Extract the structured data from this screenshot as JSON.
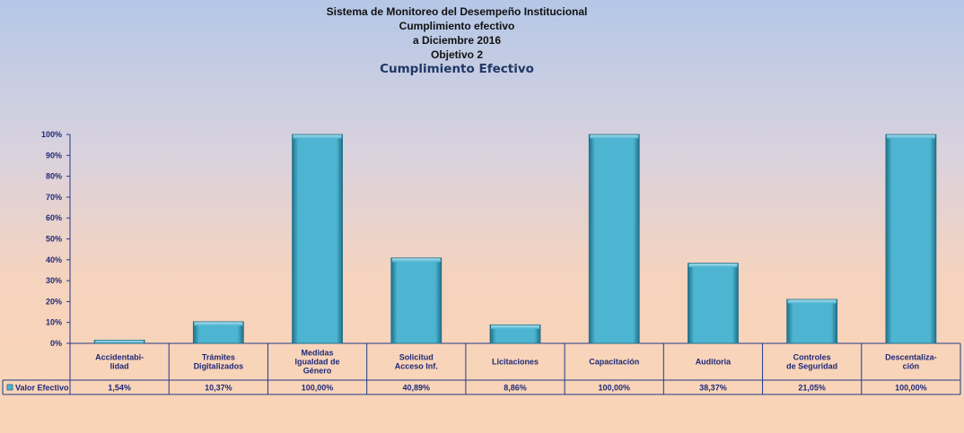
{
  "titles": {
    "line1": "Sistema de Monitoreo del Desempeño Institucional",
    "line2": "Cumplimiento efectivo",
    "line3": "a Diciembre 2016",
    "line4": "Objetivo 2",
    "subtitle": "Cumplimiento Efectivo"
  },
  "chart_data": {
    "type": "bar",
    "categories": [
      [
        "Accidentabi-",
        "lidad"
      ],
      [
        "Trámites",
        "Digitalizados"
      ],
      [
        "Medidas",
        "Igualdad de",
        "Género"
      ],
      [
        "Solicitud",
        "Acceso Inf."
      ],
      [
        "Licitaciones"
      ],
      [
        "Capacitación"
      ],
      [
        "Auditoria"
      ],
      [
        "Controles",
        "de Seguridad"
      ],
      [
        "Descentaliza-",
        "ción"
      ]
    ],
    "series": [
      {
        "name": "Valor Efectivo",
        "values": [
          1.54,
          10.37,
          100,
          40.89,
          8.86,
          100,
          38.37,
          21.05,
          100
        ],
        "labels": [
          "1,54%",
          "10,37%",
          "100,00%",
          "40,89%",
          "8,86%",
          "100,00%",
          "38,37%",
          "21,05%",
          "100,00%"
        ]
      }
    ],
    "yticks": [
      "0%",
      "10%",
      "20%",
      "30%",
      "40%",
      "50%",
      "60%",
      "70%",
      "80%",
      "90%",
      "100%"
    ],
    "ylim": [
      0,
      100
    ],
    "data_table": true,
    "legend": "data-table-left",
    "colors": {
      "bar_fill": "#4db5d1",
      "bar_edge": "#216f88",
      "bar_highlight": "#a8dcea",
      "axis": "#1f3b8a",
      "text": "#1f2a78"
    }
  }
}
